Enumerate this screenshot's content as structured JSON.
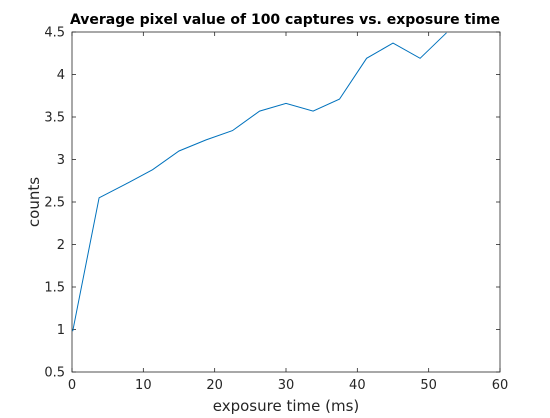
{
  "chart_data": {
    "type": "line",
    "title": "Average pixel value of 100 captures vs. exposure time",
    "xlabel": "exposure time (ms)",
    "ylabel": "counts",
    "xlim": [
      0,
      60
    ],
    "ylim": [
      0.5,
      4.5
    ],
    "xticks": [
      0,
      10,
      20,
      30,
      40,
      50,
      60
    ],
    "xtick_labels": [
      "0",
      "10",
      "20",
      "30",
      "40",
      "50",
      "60"
    ],
    "yticks": [
      0.5,
      1,
      1.5,
      2,
      2.5,
      3,
      3.5,
      4,
      4.5
    ],
    "ytick_labels": [
      "0.5",
      "1",
      "1.5",
      "2",
      "2.5",
      "3",
      "3.5",
      "4",
      "4.5"
    ],
    "grid": false,
    "line_color": "#0072BD",
    "series": [
      {
        "x": [
          0.1,
          3.8,
          7.5,
          11.3,
          15.0,
          18.8,
          22.5,
          26.3,
          30.0,
          33.8,
          37.5,
          41.3,
          45.0,
          48.8,
          52.5
        ],
        "values": [
          0.98,
          2.55,
          2.71,
          2.88,
          3.1,
          3.23,
          3.34,
          3.57,
          3.66,
          3.57,
          3.71,
          4.19,
          4.37,
          4.19,
          4.49
        ]
      }
    ]
  }
}
